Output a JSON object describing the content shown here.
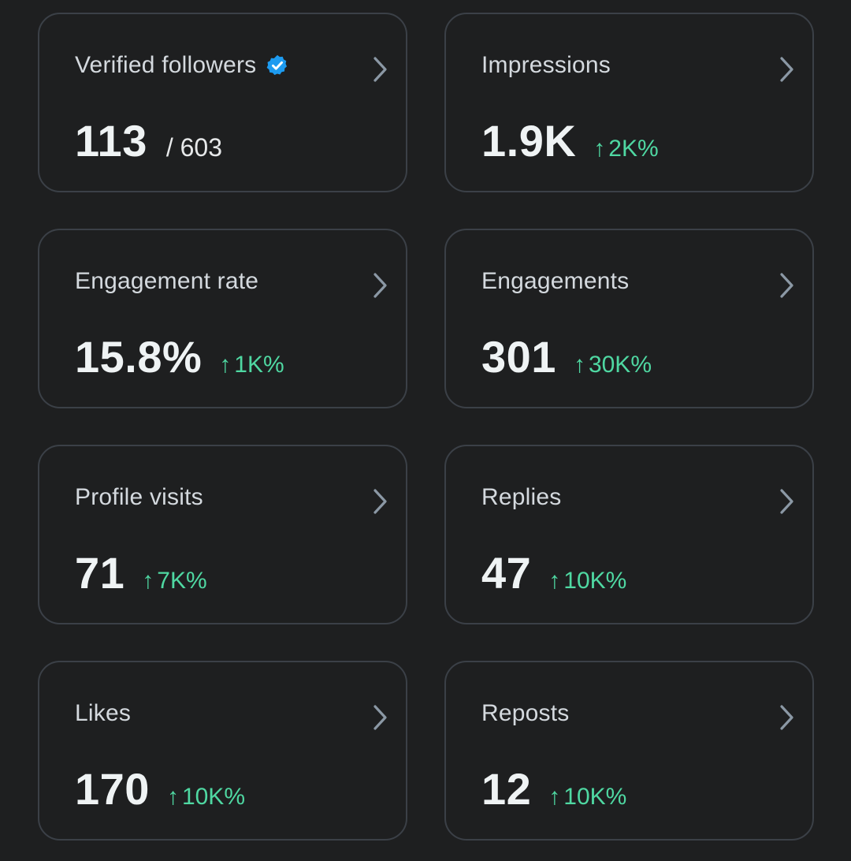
{
  "accent_positive": "#4fd8a2",
  "verified_color": "#1d9bf0",
  "cards": [
    {
      "title": "Verified followers",
      "value": "113",
      "secondary": "/ 603",
      "icon": "verified-badge-icon"
    },
    {
      "title": "Impressions",
      "value": "1.9K",
      "change": "2K%"
    },
    {
      "title": "Engagement rate",
      "value": "15.8%",
      "change": "1K%"
    },
    {
      "title": "Engagements",
      "value": "301",
      "change": "30K%"
    },
    {
      "title": "Profile visits",
      "value": "71",
      "change": "7K%"
    },
    {
      "title": "Replies",
      "value": "47",
      "change": "10K%"
    },
    {
      "title": "Likes",
      "value": "170",
      "change": "10K%"
    },
    {
      "title": "Reposts",
      "value": "12",
      "change": "10K%"
    }
  ],
  "arrow_glyph": "↑"
}
